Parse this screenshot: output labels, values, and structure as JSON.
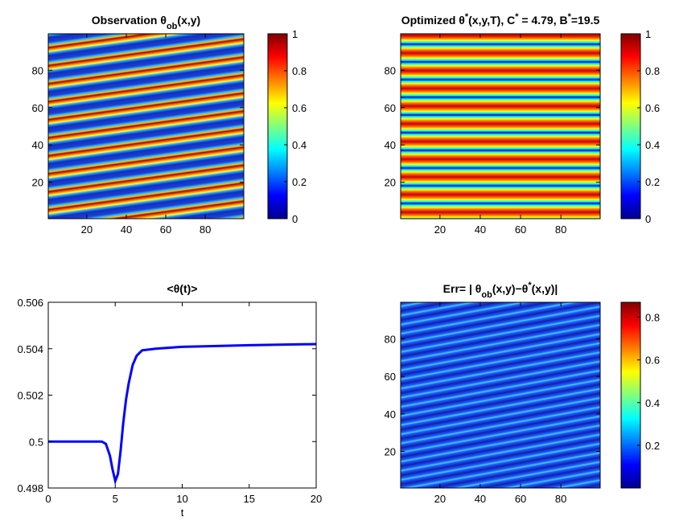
{
  "chart_data": [
    {
      "type": "heatmap",
      "title": [
        {
          "text": "Observation θ"
        },
        {
          "text": "ob",
          "sub": true
        },
        {
          "text": "(x,y)"
        }
      ],
      "xlim": [
        0.5,
        99.5
      ],
      "ylim": [
        0.5,
        99.5
      ],
      "xticks": [
        20,
        40,
        60,
        80
      ],
      "yticks": [
        20,
        40,
        60,
        80
      ],
      "colorbar": {
        "clim": [
          0,
          1
        ],
        "ticks": [
          0,
          0.2,
          0.4,
          0.6,
          0.8,
          1
        ]
      }
    },
    {
      "type": "heatmap",
      "title": [
        {
          "text": "Optimized    θ"
        },
        {
          "text": "*",
          "sup": true
        },
        {
          "text": "(x,y,T), C"
        },
        {
          "text": "*",
          "sup": true
        },
        {
          "text": " = 4.79, B"
        },
        {
          "text": "*",
          "sup": true
        },
        {
          "text": "=19.5"
        }
      ],
      "xlim": [
        0.5,
        99.5
      ],
      "ylim": [
        0.5,
        99.5
      ],
      "xticks": [
        20,
        40,
        60,
        80
      ],
      "yticks": [
        20,
        40,
        60,
        80
      ],
      "colorbar": {
        "clim": [
          0,
          1
        ],
        "ticks": [
          0,
          0.2,
          0.4,
          0.6,
          0.8,
          1
        ]
      }
    },
    {
      "type": "line",
      "title": [
        {
          "text": "<θ(t)>"
        }
      ],
      "xlabel": "t",
      "x": [
        0,
        1,
        2,
        3,
        4,
        4.3,
        4.6,
        4.8,
        5,
        5.2,
        5.4,
        5.6,
        5.8,
        6,
        6.3,
        6.6,
        7,
        8,
        10,
        15,
        20
      ],
      "series": [
        {
          "color": "#0000ff",
          "values": [
            0.5,
            0.5,
            0.5,
            0.5,
            0.5,
            0.4999,
            0.4994,
            0.4988,
            0.4983,
            0.4986,
            0.4996,
            0.5008,
            0.5018,
            0.5025,
            0.5033,
            0.5037,
            0.50393,
            0.504,
            0.50408,
            0.50415,
            0.5042
          ]
        }
      ],
      "xlim": [
        0,
        20
      ],
      "ylim": [
        0.498,
        0.506
      ],
      "xticks": [
        0,
        5,
        10,
        15,
        20
      ],
      "yticks": [
        0.498,
        0.5,
        0.502,
        0.504,
        0.506
      ]
    },
    {
      "type": "heatmap",
      "title": [
        {
          "text": "Err= | θ"
        },
        {
          "text": "ob",
          "sub": true
        },
        {
          "text": "(x,y)−θ"
        },
        {
          "text": "*",
          "sup": true
        },
        {
          "text": "(x,y)|"
        }
      ],
      "xlim": [
        0.5,
        99.5
      ],
      "ylim": [
        0.5,
        99.5
      ],
      "xticks": [
        20,
        40,
        60,
        80
      ],
      "yticks": [
        20,
        40,
        60,
        80
      ],
      "colorbar": {
        "clim": [
          0,
          0.87
        ],
        "ticks": [
          0.2,
          0.4,
          0.6,
          0.8
        ]
      }
    }
  ]
}
